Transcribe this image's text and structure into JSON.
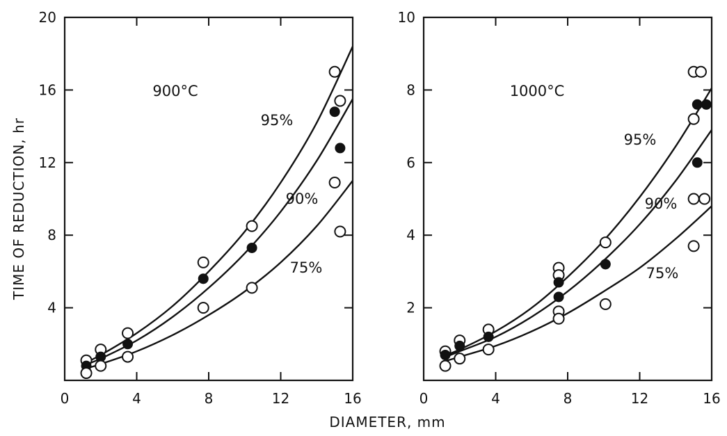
{
  "figure": {
    "ylabel": "TIME OF REDUCTION, hr",
    "xlabel": "DIAMETER, mm"
  },
  "chart_data": [
    {
      "type": "scatter",
      "title": "900°C",
      "xlabel": "DIAMETER, mm",
      "ylabel": "TIME OF REDUCTION, hr",
      "xlim": [
        0,
        16
      ],
      "ylim": [
        0,
        20
      ],
      "xticks": [
        0,
        4,
        8,
        12,
        16
      ],
      "yticks": [
        4,
        8,
        12,
        16,
        20
      ],
      "grid": false,
      "legend": "curve labels placed on the plot",
      "series": [
        {
          "name": "95%",
          "marker": "open",
          "points": [
            [
              1.2,
              1.1
            ],
            [
              2.0,
              1.7
            ],
            [
              3.5,
              2.6
            ],
            [
              7.7,
              6.5
            ],
            [
              10.4,
              8.5
            ],
            [
              15.0,
              17.0
            ],
            [
              15.3,
              15.4
            ]
          ],
          "curve": [
            [
              1.0,
              0.9
            ],
            [
              2.0,
              1.4
            ],
            [
              4.0,
              2.6
            ],
            [
              6.0,
              4.1
            ],
            [
              8.0,
              6.0
            ],
            [
              10.0,
              8.2
            ],
            [
              12.0,
              10.9
            ],
            [
              14.0,
              14.2
            ],
            [
              16.0,
              18.4
            ]
          ]
        },
        {
          "name": "90%",
          "marker": "filled",
          "points": [
            [
              1.2,
              0.8
            ],
            [
              2.0,
              1.3
            ],
            [
              3.5,
              2.0
            ],
            [
              7.7,
              5.6
            ],
            [
              10.4,
              7.3
            ],
            [
              15.0,
              14.8
            ],
            [
              15.3,
              12.8
            ]
          ],
          "curve": [
            [
              1.0,
              0.8
            ],
            [
              2.0,
              1.2
            ],
            [
              4.0,
              2.2
            ],
            [
              6.0,
              3.5
            ],
            [
              8.0,
              5.1
            ],
            [
              10.0,
              7.0
            ],
            [
              12.0,
              9.3
            ],
            [
              14.0,
              12.1
            ],
            [
              16.0,
              15.5
            ]
          ]
        },
        {
          "name": "75%",
          "marker": "open",
          "points": [
            [
              1.2,
              0.4
            ],
            [
              2.0,
              0.8
            ],
            [
              3.5,
              1.3
            ],
            [
              7.7,
              4.0
            ],
            [
              10.4,
              5.1
            ],
            [
              15.0,
              10.9
            ],
            [
              15.3,
              8.2
            ]
          ],
          "curve": [
            [
              1.0,
              0.6
            ],
            [
              2.0,
              0.9
            ],
            [
              4.0,
              1.6
            ],
            [
              6.0,
              2.5
            ],
            [
              8.0,
              3.6
            ],
            [
              10.0,
              4.9
            ],
            [
              12.0,
              6.5
            ],
            [
              14.0,
              8.5
            ],
            [
              16.0,
              11.0
            ]
          ]
        }
      ]
    },
    {
      "type": "scatter",
      "title": "1000°C",
      "xlabel": "DIAMETER, mm",
      "ylabel": "TIME OF REDUCTION, hr",
      "xlim": [
        0,
        16
      ],
      "ylim": [
        0,
        10
      ],
      "xticks": [
        0,
        4,
        8,
        12,
        16
      ],
      "yticks": [
        2,
        4,
        6,
        8,
        10
      ],
      "grid": false,
      "legend": "curve labels placed on the plot",
      "series": [
        {
          "name": "95%",
          "marker": "open",
          "points": [
            [
              1.2,
              0.8
            ],
            [
              2.0,
              1.1
            ],
            [
              3.6,
              1.4
            ],
            [
              7.5,
              3.1
            ],
            [
              7.5,
              2.9
            ],
            [
              10.1,
              3.8
            ],
            [
              15.0,
              8.5
            ],
            [
              15.4,
              8.5
            ],
            [
              15.0,
              7.2
            ]
          ],
          "curve": [
            [
              1.0,
              0.65
            ],
            [
              2.0,
              0.85
            ],
            [
              4.0,
              1.35
            ],
            [
              6.0,
              2.0
            ],
            [
              8.0,
              2.85
            ],
            [
              10.0,
              3.85
            ],
            [
              12.0,
              5.05
            ],
            [
              14.0,
              6.45
            ],
            [
              16.0,
              8.05
            ]
          ]
        },
        {
          "name": "90%",
          "marker": "filled",
          "points": [
            [
              1.2,
              0.7
            ],
            [
              2.0,
              0.95
            ],
            [
              3.6,
              1.2
            ],
            [
              7.5,
              2.7
            ],
            [
              7.5,
              2.3
            ],
            [
              10.1,
              3.2
            ],
            [
              15.2,
              7.6
            ],
            [
              15.7,
              7.6
            ],
            [
              15.2,
              6.0
            ]
          ],
          "curve": [
            [
              1.0,
              0.6
            ],
            [
              2.0,
              0.8
            ],
            [
              4.0,
              1.2
            ],
            [
              6.0,
              1.75
            ],
            [
              8.0,
              2.45
            ],
            [
              10.0,
              3.3
            ],
            [
              12.0,
              4.3
            ],
            [
              14.0,
              5.5
            ],
            [
              16.0,
              6.9
            ]
          ]
        },
        {
          "name": "75%",
          "marker": "open",
          "points": [
            [
              1.2,
              0.4
            ],
            [
              2.0,
              0.6
            ],
            [
              3.6,
              0.85
            ],
            [
              7.5,
              1.9
            ],
            [
              7.5,
              1.7
            ],
            [
              10.1,
              2.1
            ],
            [
              15.0,
              5.0
            ],
            [
              15.6,
              5.0
            ],
            [
              15.0,
              3.7
            ]
          ],
          "curve": [
            [
              1.0,
              0.5
            ],
            [
              2.0,
              0.65
            ],
            [
              4.0,
              0.95
            ],
            [
              6.0,
              1.35
            ],
            [
              8.0,
              1.85
            ],
            [
              10.0,
              2.45
            ],
            [
              12.0,
              3.1
            ],
            [
              14.0,
              3.9
            ],
            [
              16.0,
              4.8
            ]
          ]
        }
      ]
    }
  ]
}
